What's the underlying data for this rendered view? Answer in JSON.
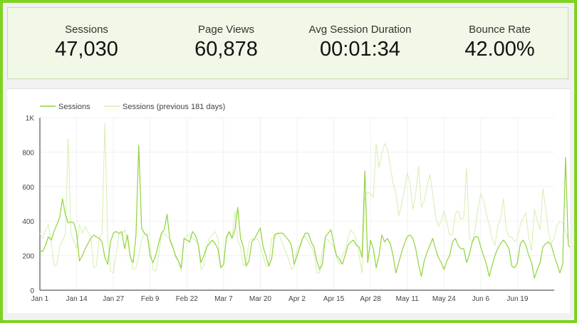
{
  "kpis": [
    {
      "label": "Sessions",
      "value": "47,030"
    },
    {
      "label": "Page Views",
      "value": "60,878"
    },
    {
      "label": "Avg Session Duration",
      "value": "00:01:34"
    },
    {
      "label": "Bounce Rate",
      "value": "42.00%"
    }
  ],
  "colors": {
    "frame": "#7ed321",
    "current": "#8fd43a",
    "previous": "#d6eeb0",
    "kpi_panel": "#f1f8e7"
  },
  "chart_data": {
    "type": "line",
    "title": "",
    "xlabel": "",
    "ylabel": "",
    "ylim": [
      0,
      1000
    ],
    "y_ticks": [
      "0",
      "200",
      "400",
      "600",
      "800",
      "1K"
    ],
    "y_tick_values": [
      0,
      200,
      400,
      600,
      800,
      1000
    ],
    "x_ticks": [
      "Jan 1",
      "Jan 14",
      "Jan 27",
      "Feb 9",
      "Feb 22",
      "Mar 7",
      "Mar 20",
      "Apr 2",
      "Apr 15",
      "Apr 28",
      "May 11",
      "May 24",
      "Jun 6",
      "Jun 19"
    ],
    "x_tick_days": [
      0,
      13,
      26,
      39,
      52,
      65,
      78,
      91,
      104,
      117,
      130,
      143,
      156,
      169
    ],
    "x_days": 183,
    "grid": true,
    "legend_position": "top-left",
    "series": [
      {
        "name": "Sessions",
        "color": "#8fd43a",
        "values": [
          230,
          225,
          260,
          310,
          290,
          340,
          380,
          420,
          530,
          440,
          390,
          395,
          390,
          330,
          170,
          200,
          240,
          270,
          300,
          320,
          310,
          300,
          280,
          190,
          150,
          280,
          330,
          340,
          330,
          340,
          240,
          320,
          190,
          160,
          320,
          840,
          360,
          330,
          320,
          200,
          160,
          200,
          270,
          330,
          350,
          440,
          290,
          250,
          200,
          170,
          130,
          300,
          290,
          280,
          340,
          320,
          270,
          160,
          200,
          250,
          270,
          290,
          270,
          240,
          130,
          150,
          310,
          340,
          300,
          350,
          480,
          300,
          250,
          140,
          170,
          280,
          300,
          330,
          360,
          250,
          200,
          140,
          180,
          320,
          330,
          330,
          330,
          310,
          290,
          260,
          150,
          200,
          250,
          300,
          330,
          330,
          280,
          250,
          170,
          120,
          150,
          310,
          330,
          350,
          270,
          200,
          180,
          150,
          200,
          260,
          280,
          290,
          260,
          250,
          190,
          690,
          160,
          290,
          240,
          130,
          200,
          320,
          280,
          300,
          270,
          200,
          100,
          160,
          220,
          270,
          310,
          320,
          300,
          240,
          150,
          80,
          170,
          220,
          260,
          300,
          240,
          190,
          160,
          120,
          170,
          200,
          280,
          300,
          260,
          240,
          240,
          160,
          210,
          280,
          310,
          310,
          250,
          200,
          150,
          80,
          140,
          200,
          240,
          270,
          290,
          270,
          240,
          140,
          130,
          160,
          270,
          290,
          260,
          200,
          160,
          70,
          120,
          160,
          250,
          270,
          280,
          260,
          200,
          150,
          100,
          150,
          770,
          260,
          240,
          220,
          200
        ]
      },
      {
        "name": "Sessions (previous 181 days)",
        "color": "#d6eeb0",
        "values": [
          330,
          300,
          350,
          380,
          280,
          140,
          150,
          250,
          290,
          320,
          880,
          330,
          280,
          240,
          380,
          330,
          370,
          340,
          310,
          130,
          140,
          300,
          330,
          970,
          300,
          110,
          100,
          210,
          330,
          320,
          350,
          300,
          200,
          120,
          130,
          200,
          290,
          330,
          310,
          260,
          120,
          110,
          200,
          320,
          330,
          310,
          300,
          260,
          190,
          170,
          110,
          290,
          320,
          320,
          300,
          290,
          260,
          120,
          140,
          250,
          300,
          320,
          340,
          300,
          130,
          150,
          300,
          330,
          300,
          460,
          290,
          250,
          140,
          160,
          280,
          300,
          290,
          300,
          250,
          200,
          140,
          140,
          300,
          300,
          330,
          310,
          260,
          220,
          180,
          120,
          140,
          240,
          260,
          300,
          310,
          280,
          250,
          220,
          100,
          100,
          230,
          300,
          290,
          270,
          250,
          190,
          150,
          200,
          230,
          300,
          350,
          330,
          290,
          200,
          100,
          540,
          570,
          560,
          540,
          850,
          710,
          790,
          850,
          820,
          720,
          620,
          560,
          430,
          500,
          580,
          680,
          620,
          470,
          560,
          720,
          480,
          520,
          600,
          670,
          560,
          430,
          370,
          400,
          460,
          390,
          320,
          320,
          440,
          460,
          410,
          420,
          710,
          300,
          280,
          350,
          470,
          560,
          520,
          440,
          380,
          300,
          260,
          370,
          410,
          530,
          350,
          310,
          310,
          280,
          300,
          380,
          420,
          450,
          300,
          230,
          470,
          400,
          350,
          590,
          470,
          330,
          270,
          300,
          380,
          400,
          390,
          340,
          290
        ]
      }
    ]
  }
}
